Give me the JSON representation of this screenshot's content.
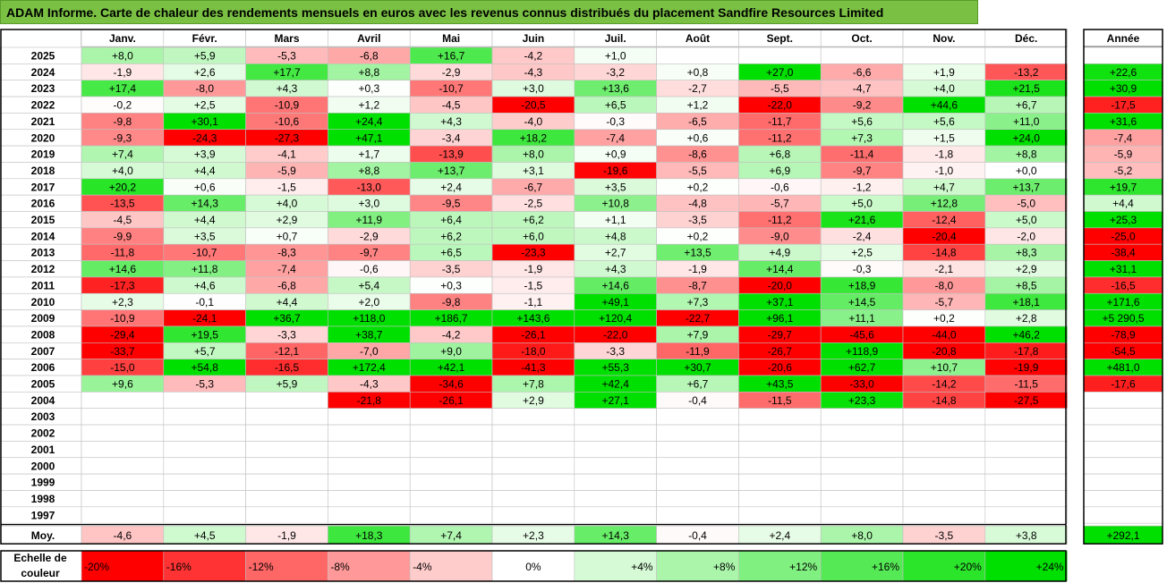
{
  "title": "ADAM Informe. Carte de chaleur des rendements mensuels en euros avec les revenus connus distribués du placement Sandfire Resources Limited",
  "chart_data": {
    "type": "heatmap",
    "months": [
      "Janv.",
      "Févr.",
      "Mars",
      "Avril",
      "Mai",
      "Juin",
      "Juil.",
      "Août",
      "Sept.",
      "Oct.",
      "Nov.",
      "Déc."
    ],
    "year_header": "Année",
    "rows": [
      {
        "year": "2025",
        "months": [
          "+8,0",
          "+5,9",
          "-5,3",
          "-6,8",
          "+16,7",
          "-4,2",
          "+1,0",
          "",
          "",
          "",
          "",
          ""
        ],
        "annual": ""
      },
      {
        "year": "2024",
        "months": [
          "-1,9",
          "+2,6",
          "+17,7",
          "+8,8",
          "-2,9",
          "-4,3",
          "-3,2",
          "+0,8",
          "+27,0",
          "-6,6",
          "+1,9",
          "-13,2"
        ],
        "annual": "+22,6"
      },
      {
        "year": "2023",
        "months": [
          "+17,4",
          "-8,0",
          "+4,3",
          "+0,3",
          "-10,7",
          "+3,0",
          "+13,6",
          "-2,7",
          "-5,5",
          "-4,7",
          "+4,0",
          "+21,5"
        ],
        "annual": "+30,9"
      },
      {
        "year": "2022",
        "months": [
          "-0,2",
          "+2,5",
          "-10,9",
          "+1,2",
          "-4,5",
          "-20,5",
          "+6,5",
          "+1,2",
          "-22,0",
          "-9,2",
          "+44,6",
          "+6,7"
        ],
        "annual": "-17,5"
      },
      {
        "year": "2021",
        "months": [
          "-9,8",
          "+30,1",
          "-10,6",
          "+24,4",
          "+4,3",
          "-4,0",
          "-0,3",
          "-6,5",
          "-11,7",
          "+5,6",
          "+5,6",
          "+11,0"
        ],
        "annual": "+31,6"
      },
      {
        "year": "2020",
        "months": [
          "-9,3",
          "-24,3",
          "-27,3",
          "+47,1",
          "-3,4",
          "+18,2",
          "-7,4",
          "+0,6",
          "-11,2",
          "+7,3",
          "+1,5",
          "+24,0"
        ],
        "annual": "-7,4"
      },
      {
        "year": "2019",
        "months": [
          "+7,4",
          "+3,9",
          "-4,1",
          "+1,7",
          "-13,9",
          "+8,0",
          "+0,9",
          "-8,6",
          "+6,8",
          "-11,4",
          "-1,8",
          "+8,8"
        ],
        "annual": "-5,9"
      },
      {
        "year": "2018",
        "months": [
          "+4,0",
          "+4,4",
          "-5,9",
          "+8,8",
          "+13,7",
          "+3,1",
          "-19,6",
          "-5,5",
          "+6,9",
          "-9,7",
          "-1,0",
          "+0,0"
        ],
        "annual": "-5,2"
      },
      {
        "year": "2017",
        "months": [
          "+20,2",
          "+0,6",
          "-1,5",
          "-13,0",
          "+2,4",
          "-6,7",
          "+3,5",
          "+0,2",
          "-0,6",
          "-1,2",
          "+4,7",
          "+13,7"
        ],
        "annual": "+19,7"
      },
      {
        "year": "2016",
        "months": [
          "-13,5",
          "+14,3",
          "+4,0",
          "+3,0",
          "-9,5",
          "-2,5",
          "+10,8",
          "-4,8",
          "-5,7",
          "+5,0",
          "+12,8",
          "-5,0"
        ],
        "annual": "+4,4"
      },
      {
        "year": "2015",
        "months": [
          "-4,5",
          "+4,4",
          "+2,9",
          "+11,9",
          "+6,4",
          "+6,2",
          "+1,1",
          "-3,5",
          "-11,2",
          "+21,6",
          "-12,4",
          "+5,0"
        ],
        "annual": "+25,3"
      },
      {
        "year": "2014",
        "months": [
          "-9,9",
          "+3,5",
          "+0,7",
          "-2,9",
          "+6,2",
          "+6,0",
          "+4,8",
          "+0,2",
          "-9,0",
          "-2,4",
          "-20,4",
          "-2,0"
        ],
        "annual": "-25,0"
      },
      {
        "year": "2013",
        "months": [
          "-11,8",
          "-10,7",
          "-8,3",
          "-9,7",
          "+6,5",
          "-23,3",
          "+2,7",
          "+13,5",
          "+4,9",
          "+2,5",
          "-14,8",
          "+8,3"
        ],
        "annual": "-38,4"
      },
      {
        "year": "2012",
        "months": [
          "+14,6",
          "+11,8",
          "-7,4",
          "-0,6",
          "-3,5",
          "-1,9",
          "+4,3",
          "-1,9",
          "+14,4",
          "-0,3",
          "-2,1",
          "+2,9"
        ],
        "annual": "+31,1"
      },
      {
        "year": "2011",
        "months": [
          "-17,3",
          "+4,6",
          "-6,8",
          "+5,4",
          "+0,3",
          "-1,5",
          "+14,6",
          "-8,7",
          "-20,0",
          "+18,9",
          "-8,0",
          "+8,5"
        ],
        "annual": "-16,5"
      },
      {
        "year": "2010",
        "months": [
          "+2,3",
          "-0,1",
          "+4,4",
          "+2,0",
          "-9,8",
          "-1,1",
          "+49,1",
          "+7,3",
          "+37,1",
          "+14,5",
          "-5,7",
          "+18,1"
        ],
        "annual": "+171,6"
      },
      {
        "year": "2009",
        "months": [
          "-10,9",
          "-24,1",
          "+36,7",
          "+118,0",
          "+186,7",
          "+143,6",
          "+120,4",
          "-22,7",
          "+96,1",
          "+11,1",
          "+0,2",
          "+2,8"
        ],
        "annual": "+5 290,5"
      },
      {
        "year": "2008",
        "months": [
          "-29,4",
          "+19,5",
          "-3,3",
          "+38,7",
          "-4,2",
          "-26,1",
          "-22,0",
          "+7,9",
          "-29,7",
          "-45,6",
          "-44,0",
          "+46,2"
        ],
        "annual": "-78,9"
      },
      {
        "year": "2007",
        "months": [
          "-33,7",
          "+5,7",
          "-12,1",
          "-7,0",
          "+9,0",
          "-18,0",
          "-3,3",
          "-11,9",
          "-26,7",
          "+118,9",
          "-20,8",
          "-17,8"
        ],
        "annual": "-54,5"
      },
      {
        "year": "2006",
        "months": [
          "-15,0",
          "+54,8",
          "-16,5",
          "+172,4",
          "+42,1",
          "-41,3",
          "+55,3",
          "+30,7",
          "-20,6",
          "+62,7",
          "+10,7",
          "-19,9"
        ],
        "annual": "+481,0"
      },
      {
        "year": "2005",
        "months": [
          "+9,6",
          "-5,3",
          "+5,9",
          "-4,3",
          "-34,6",
          "+7,8",
          "+42,4",
          "+6,7",
          "+43,5",
          "-33,0",
          "-14,2",
          "-11,5"
        ],
        "annual": "-17,6"
      },
      {
        "year": "2004",
        "months": [
          "",
          "",
          "",
          "-21,8",
          "-26,1",
          "+2,9",
          "+27,1",
          "-0,4",
          "-11,5",
          "+23,3",
          "-14,8",
          "-27,5"
        ],
        "annual": ""
      },
      {
        "year": "2003",
        "months": [
          "",
          "",
          "",
          "",
          "",
          "",
          "",
          "",
          "",
          "",
          "",
          ""
        ],
        "annual": ""
      },
      {
        "year": "2002",
        "months": [
          "",
          "",
          "",
          "",
          "",
          "",
          "",
          "",
          "",
          "",
          "",
          ""
        ],
        "annual": ""
      },
      {
        "year": "2001",
        "months": [
          "",
          "",
          "",
          "",
          "",
          "",
          "",
          "",
          "",
          "",
          "",
          ""
        ],
        "annual": ""
      },
      {
        "year": "2000",
        "months": [
          "",
          "",
          "",
          "",
          "",
          "",
          "",
          "",
          "",
          "",
          "",
          ""
        ],
        "annual": ""
      },
      {
        "year": "1999",
        "months": [
          "",
          "",
          "",
          "",
          "",
          "",
          "",
          "",
          "",
          "",
          "",
          ""
        ],
        "annual": ""
      },
      {
        "year": "1998",
        "months": [
          "",
          "",
          "",
          "",
          "",
          "",
          "",
          "",
          "",
          "",
          "",
          ""
        ],
        "annual": ""
      },
      {
        "year": "1997",
        "months": [
          "",
          "",
          "",
          "",
          "",
          "",
          "",
          "",
          "",
          "",
          "",
          ""
        ],
        "annual": ""
      }
    ],
    "average": {
      "label": "Moy.",
      "months": [
        "-4,6",
        "+4,5",
        "-1,9",
        "+18,3",
        "+7,4",
        "+2,3",
        "+14,3",
        "-0,4",
        "+2,4",
        "+8,0",
        "-3,5",
        "+3,8"
      ],
      "annual": "+292,1"
    },
    "scale": {
      "label_line1": "Echelle de",
      "label_line2": "couleur",
      "steps": [
        {
          "label": "-20%",
          "value": -20
        },
        {
          "label": "-16%",
          "value": -16
        },
        {
          "label": "-12%",
          "value": -12
        },
        {
          "label": "-8%",
          "value": -8
        },
        {
          "label": "-4%",
          "value": -4
        },
        {
          "label": "0%",
          "value": 0
        },
        {
          "label": "+4%",
          "value": 4
        },
        {
          "label": "+8%",
          "value": 8
        },
        {
          "label": "+12%",
          "value": 12
        },
        {
          "label": "+16%",
          "value": 16
        },
        {
          "label": "+20%",
          "value": 20
        },
        {
          "label": "+24%",
          "value": 24
        }
      ]
    },
    "colors": {
      "title_bar": "#7ac143",
      "negative_max": "#ff0000",
      "positive_max": "#00e000",
      "neutral": "#ffffff",
      "grid": "#c0c0c0",
      "border": "#000000"
    }
  }
}
